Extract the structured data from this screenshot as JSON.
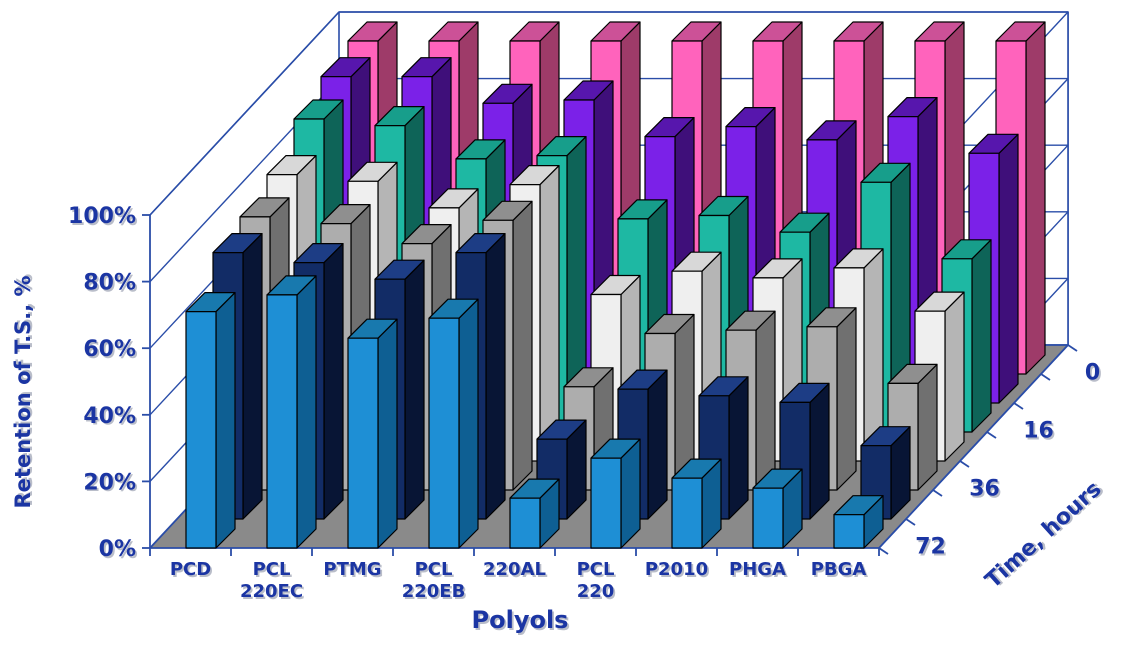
{
  "y_axis": {
    "title": "Retention of T.S., %",
    "tick_labels": [
      "0%",
      "20%",
      "40%",
      "60%",
      "80%",
      "100%"
    ]
  },
  "x_axis": {
    "title": "Polyols",
    "categories": [
      "PCD",
      "PCL 220EC",
      "PTMG",
      "PCL 220EB",
      "220AL",
      "PCL 220",
      "P2010",
      "PHGA",
      "PBGA"
    ],
    "category_display_lines": [
      [
        "PCD"
      ],
      [
        "PCL",
        "220EC"
      ],
      [
        "PTMG"
      ],
      [
        "PCL",
        "220EB"
      ],
      [
        "220AL"
      ],
      [
        "PCL",
        "220"
      ],
      [
        "P2010"
      ],
      [
        "PHGA"
      ],
      [
        "PBGA"
      ]
    ]
  },
  "z_axis": {
    "title": "Time, hours",
    "tick_labels": [
      "0",
      "16",
      "36",
      "72"
    ]
  },
  "colors": {
    "label_text": "#1B35A3",
    "label_shadow": "#B9BDC9",
    "box_line": "#2A4DA8",
    "floor": "#8A8A8A",
    "bar_outline": "#000000",
    "background": "#FFFFFF"
  },
  "chart_data": {
    "type": "bar",
    "projection": "3d",
    "title": "",
    "xlabel": "Polyols",
    "ylabel": "Retention of T.S., %",
    "zlabel": "Time, hours",
    "ylim": [
      0,
      100
    ],
    "y_tick_step_percent": 20,
    "grid": true,
    "row_order": "back-to-front",
    "categories": [
      "PCD",
      "PCL 220EC",
      "PTMG",
      "PCL 220EB",
      "220AL",
      "PCL 220",
      "P2010",
      "PHGA",
      "PBGA"
    ],
    "series": [
      {
        "label": "0",
        "color": {
          "front": "#FF63BC",
          "side": "#9E3B69",
          "top": "#CC5197"
        },
        "values": [
          100,
          100,
          100,
          100,
          100,
          100,
          100,
          100,
          100
        ]
      },
      {
        "label": "",
        "color": {
          "front": "#7B21E8",
          "side": "#3F0F7A",
          "top": "#5716AD"
        },
        "values": [
          98,
          98,
          90,
          91,
          80,
          83,
          79,
          86,
          75
        ]
      },
      {
        "label": "16",
        "color": {
          "front": "#1EB8A3",
          "side": "#0E6458",
          "top": "#179E8B"
        },
        "values": [
          94,
          92,
          82,
          83,
          64,
          65,
          60,
          75,
          52
        ]
      },
      {
        "label": "",
        "color": {
          "front": "#EFEFEF",
          "side": "#B5B5B5",
          "top": "#D8D8D8"
        },
        "values": [
          86,
          84,
          76,
          83,
          50,
          57,
          55,
          58,
          45
        ]
      },
      {
        "label": "36",
        "color": {
          "front": "#ADADAD",
          "side": "#707070",
          "top": "#8F8F8F"
        },
        "values": [
          82,
          80,
          74,
          81,
          31,
          47,
          48,
          49,
          32
        ]
      },
      {
        "label": "",
        "color": {
          "front": "#122C66",
          "side": "#081535",
          "top": "#1D3D85"
        },
        "values": [
          80,
          77,
          72,
          80,
          24,
          39,
          37,
          35,
          22
        ]
      },
      {
        "label": "72",
        "color": {
          "front": "#1E8FD5",
          "side": "#0E5F93",
          "top": "#1879AE"
        },
        "values": [
          71,
          76,
          63,
          69,
          15,
          27,
          21,
          18,
          10
        ]
      }
    ]
  }
}
